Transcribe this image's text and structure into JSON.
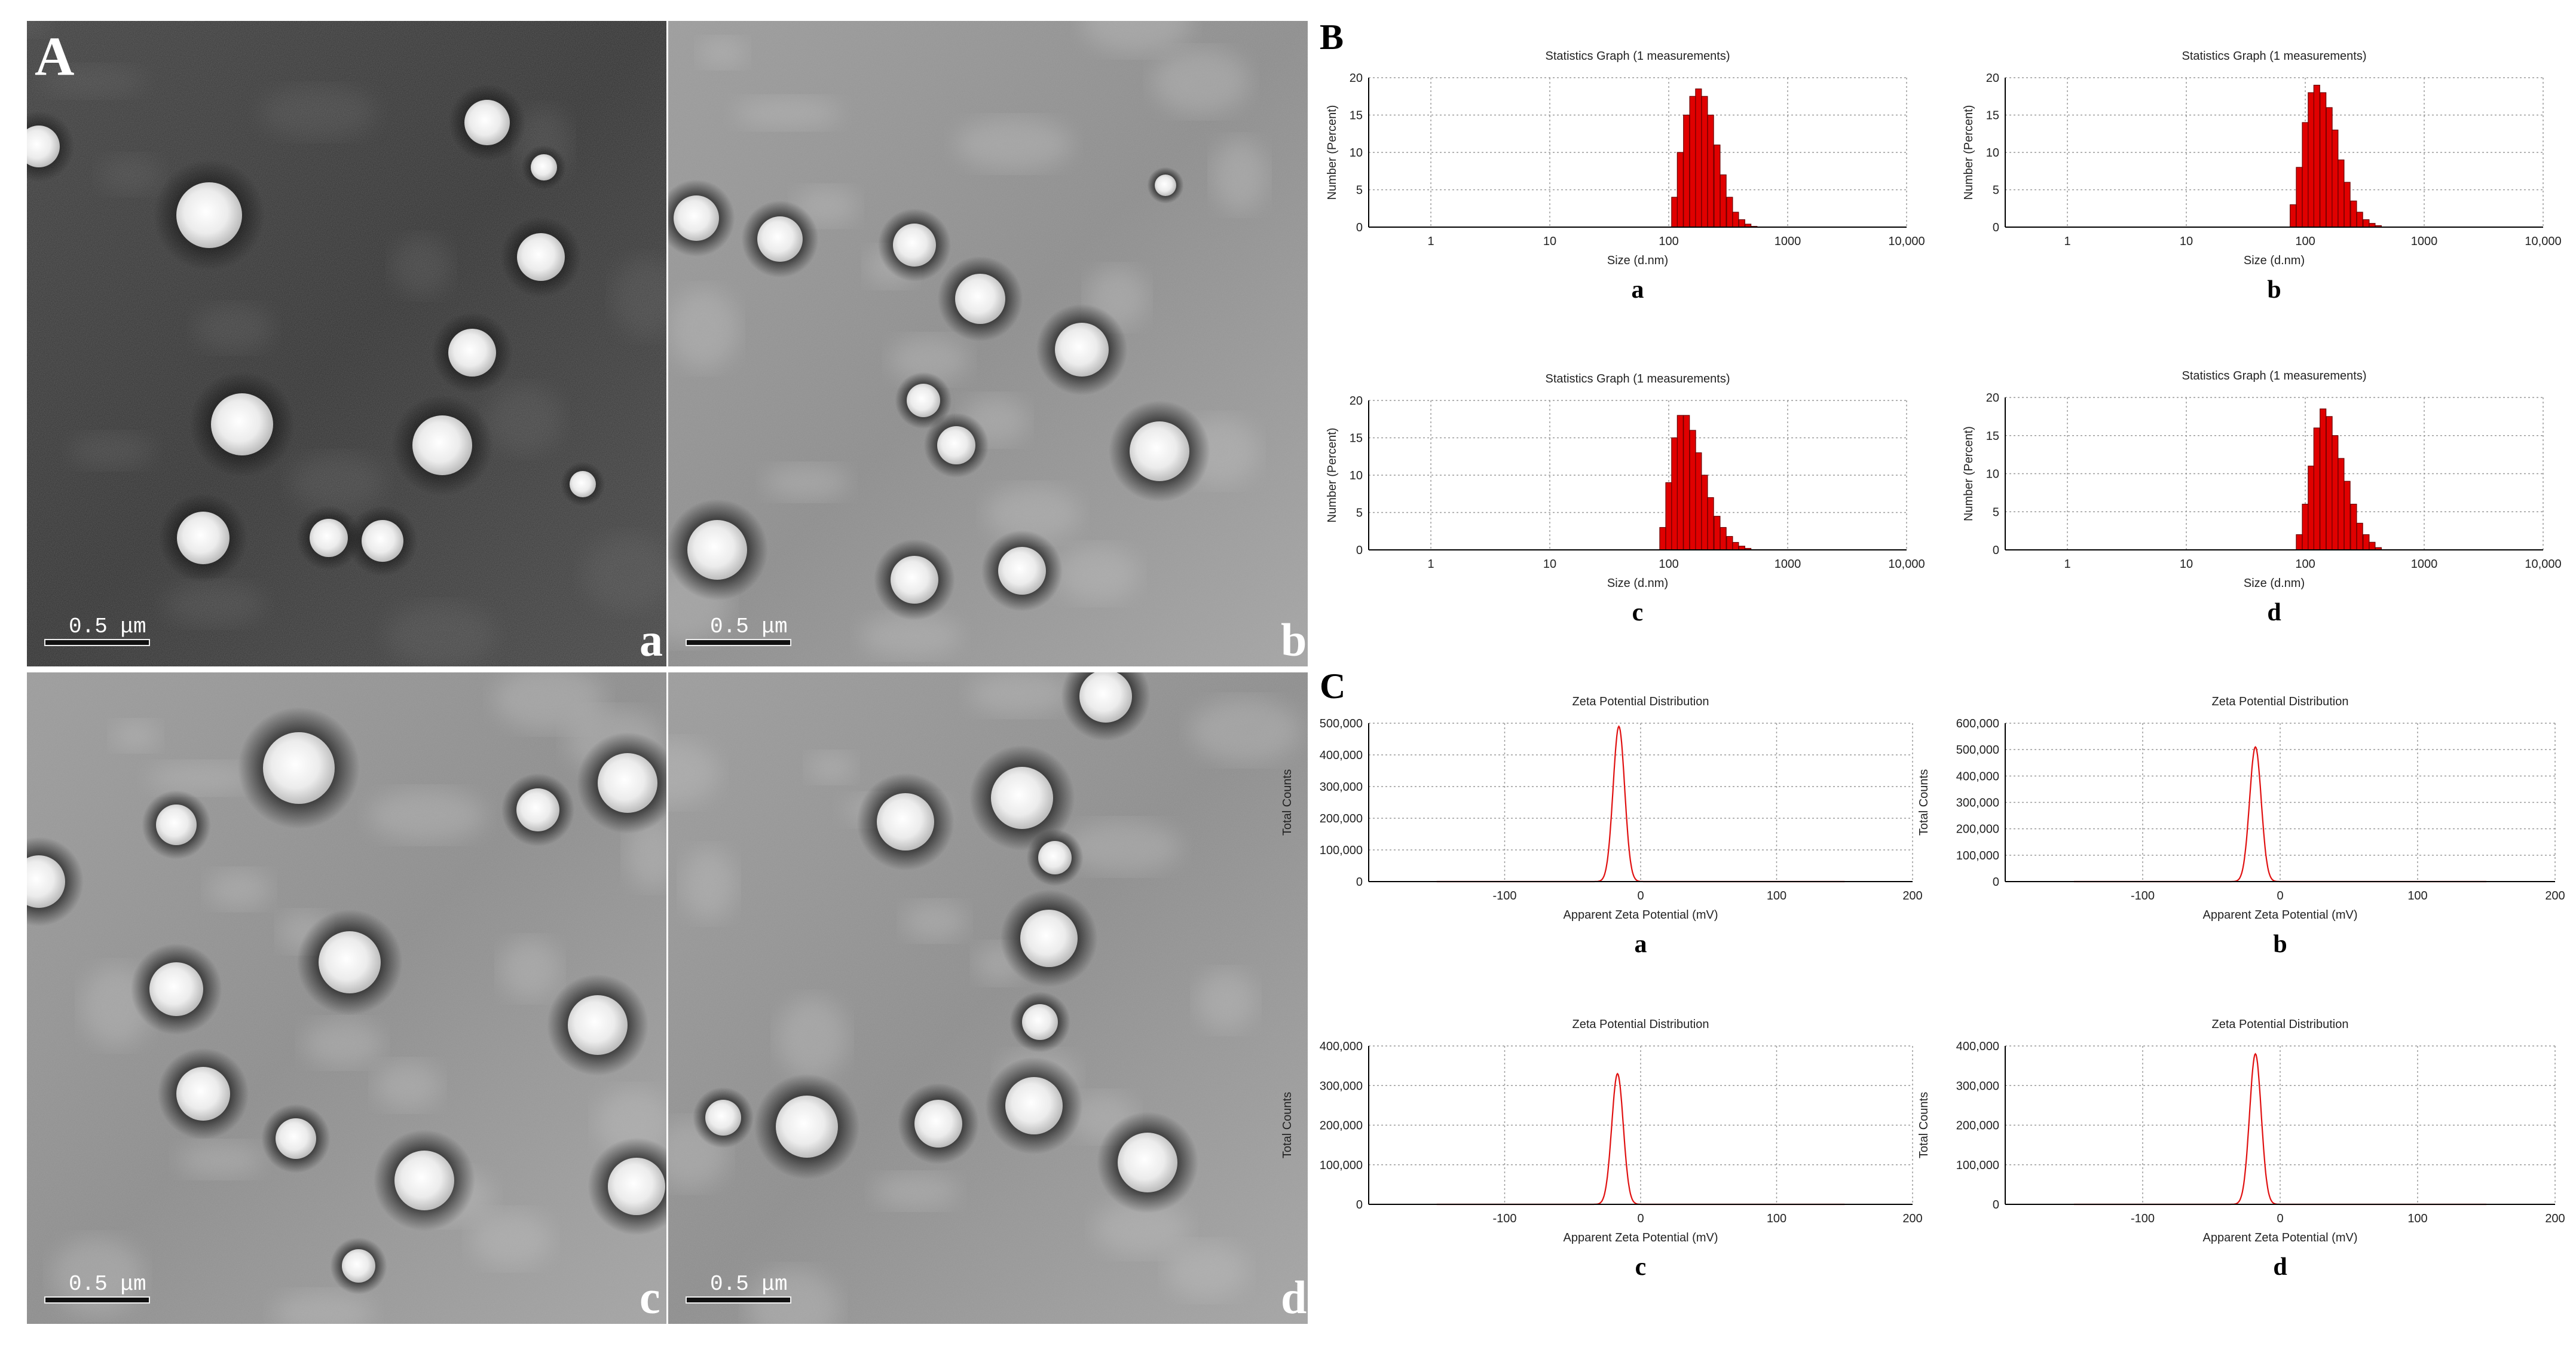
{
  "panel_labels": {
    "A": "A",
    "B": "B",
    "C": "C"
  },
  "tem": {
    "scale_bar_text": "0.5 μm",
    "images": [
      {
        "label": "a",
        "tone": "dark"
      },
      {
        "label": "b",
        "tone": "light"
      },
      {
        "label": "c",
        "tone": "light"
      },
      {
        "label": "d",
        "tone": "light"
      }
    ]
  },
  "chart_data": [
    {
      "type": "bar",
      "label": "a",
      "title": "Statistics Graph (1 measurements)",
      "xlabel": "Size (d.nm)",
      "ylabel": "Number (Percent)",
      "xscale": "log",
      "xlim": [
        0.3,
        10000
      ],
      "ylim": [
        0,
        20
      ],
      "xticks": [
        "1",
        "10",
        "100",
        "1000",
        "10,000"
      ],
      "yticks": [
        "0",
        "5",
        "10",
        "15",
        "20"
      ],
      "grid": true,
      "bar_color": "#e00000",
      "x": [
        112,
        125,
        141,
        159,
        178,
        200,
        225,
        255,
        287,
        325,
        365,
        412,
        464,
        522
      ],
      "values": [
        4,
        10,
        15,
        17.5,
        18.5,
        17.5,
        15,
        11,
        7,
        4,
        2,
        1,
        0.4,
        0.1
      ]
    },
    {
      "type": "bar",
      "label": "b",
      "title": "Statistics Graph (1 measurements)",
      "xlabel": "Size (d.nm)",
      "ylabel": "Number (Percent)",
      "xscale": "log",
      "xlim": [
        0.3,
        10000
      ],
      "ylim": [
        0,
        20
      ],
      "xticks": [
        "1",
        "10",
        "100",
        "1000",
        "10,000"
      ],
      "yticks": [
        "0",
        "5",
        "10",
        "15",
        "20"
      ],
      "grid": true,
      "bar_color": "#e00000",
      "x": [
        79,
        89,
        100,
        112,
        125,
        141,
        159,
        178,
        200,
        225,
        255,
        287,
        325,
        365,
        412
      ],
      "values": [
        3,
        8,
        14,
        18,
        19,
        18,
        16,
        13,
        9,
        6,
        3.5,
        2,
        1,
        0.5,
        0.2
      ]
    },
    {
      "type": "bar",
      "label": "c",
      "title": "Statistics Graph (1 measurements)",
      "xlabel": "Size (d.nm)",
      "ylabel": "Number (Percent)",
      "xscale": "log",
      "xlim": [
        0.3,
        10000
      ],
      "ylim": [
        0,
        20
      ],
      "xticks": [
        "1",
        "10",
        "100",
        "1000",
        "10,000"
      ],
      "yticks": [
        "0",
        "5",
        "10",
        "15",
        "20"
      ],
      "grid": true,
      "bar_color": "#e00000",
      "x": [
        89,
        100,
        112,
        125,
        141,
        159,
        178,
        200,
        225,
        255,
        287,
        325,
        365,
        412,
        464
      ],
      "values": [
        3,
        9,
        15,
        18,
        18,
        16,
        13,
        10,
        7,
        4.5,
        3,
        1.8,
        1,
        0.5,
        0.2
      ]
    },
    {
      "type": "bar",
      "label": "d",
      "title": "Statistics Graph (1 measurements)",
      "xlabel": "Size (d.nm)",
      "ylabel": "Number (Percent)",
      "xscale": "log",
      "xlim": [
        0.3,
        10000
      ],
      "ylim": [
        0,
        20
      ],
      "xticks": [
        "1",
        "10",
        "100",
        "1000",
        "10,000"
      ],
      "yticks": [
        "0",
        "5",
        "10",
        "15",
        "20"
      ],
      "grid": true,
      "bar_color": "#e00000",
      "x": [
        89,
        100,
        112,
        125,
        141,
        159,
        178,
        200,
        225,
        255,
        287,
        325,
        365,
        412
      ],
      "values": [
        2,
        6,
        11,
        16,
        18.5,
        17.5,
        15,
        12,
        9,
        6,
        3.5,
        2,
        1,
        0.3
      ]
    },
    {
      "type": "line",
      "label": "a",
      "title": "Zeta Potential Distribution",
      "xlabel": "Apparent Zeta Potential (mV)",
      "ylabel": "Total Counts",
      "xlim": [
        -200,
        200
      ],
      "ylim": [
        0,
        500000
      ],
      "xticks": [
        "-100",
        "0",
        "100",
        "200"
      ],
      "yticks": [
        "0",
        "100,000",
        "200,000",
        "300,000",
        "400,000",
        "500,000"
      ],
      "grid": true,
      "line_color": "#e01010",
      "baseline_range": [
        -150,
        150
      ],
      "peak_x": -16,
      "peak_y": 490000,
      "peak_width": 6
    },
    {
      "type": "line",
      "label": "b",
      "title": "Zeta Potential Distribution",
      "xlabel": "Apparent Zeta Potential (mV)",
      "ylabel": "Total Counts",
      "xlim": [
        -200,
        200
      ],
      "ylim": [
        0,
        600000
      ],
      "xticks": [
        "-100",
        "0",
        "100",
        "200"
      ],
      "yticks": [
        "0",
        "100,000",
        "200,000",
        "300,000",
        "400,000",
        "500,000",
        "600,000"
      ],
      "grid": true,
      "line_color": "#e01010",
      "baseline_range": [
        -150,
        150
      ],
      "peak_x": -18,
      "peak_y": 510000,
      "peak_width": 6
    },
    {
      "type": "line",
      "label": "c",
      "title": "Zeta Potential Distribution",
      "xlabel": "Apparent Zeta Potential (mV)",
      "ylabel": "Total Counts",
      "xlim": [
        -200,
        200
      ],
      "ylim": [
        0,
        400000
      ],
      "xticks": [
        "-100",
        "0",
        "100",
        "200"
      ],
      "yticks": [
        "0",
        "100,000",
        "200,000",
        "300,000",
        "400,000"
      ],
      "grid": true,
      "line_color": "#e01010",
      "baseline_range": [
        -150,
        150
      ],
      "peak_x": -17,
      "peak_y": 330000,
      "peak_width": 6
    },
    {
      "type": "line",
      "label": "d",
      "title": "Zeta Potential Distribution",
      "xlabel": "Apparent Zeta Potential (mV)",
      "ylabel": "Total Counts",
      "xlim": [
        -200,
        200
      ],
      "ylim": [
        0,
        400000
      ],
      "xticks": [
        "-100",
        "0",
        "100",
        "200"
      ],
      "yticks": [
        "0",
        "100,000",
        "200,000",
        "300,000",
        "400,000"
      ],
      "grid": true,
      "line_color": "#e01010",
      "baseline_range": [
        -150,
        150
      ],
      "peak_x": -18,
      "peak_y": 380000,
      "peak_width": 6
    }
  ]
}
